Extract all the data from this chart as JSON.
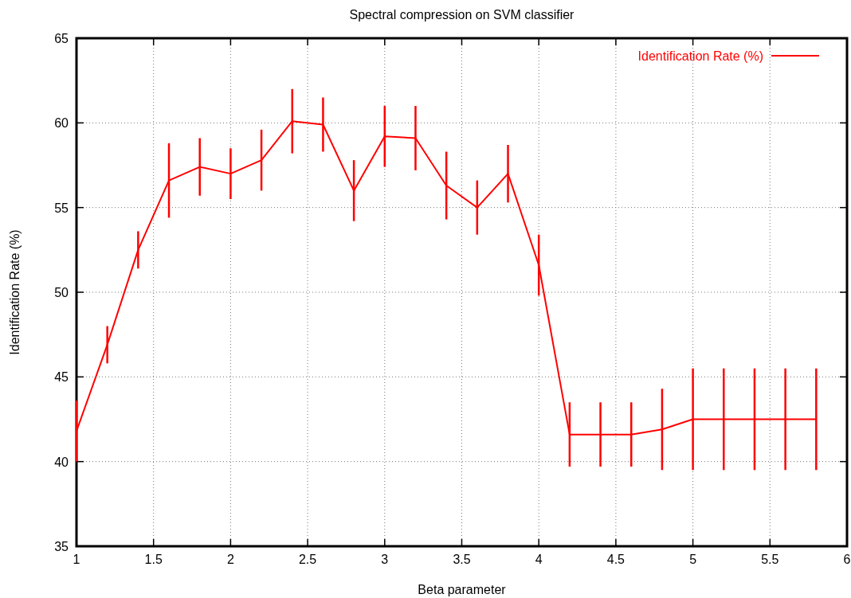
{
  "chart_data": {
    "type": "line",
    "title": "Spectral compression on SVM classifier",
    "xlabel": "Beta parameter",
    "ylabel": "Identification Rate (%)",
    "x": [
      1,
      1.2,
      1.4,
      1.6,
      1.8,
      2,
      2.2,
      2.4,
      2.6,
      2.8,
      3,
      3.2,
      3.4,
      3.6,
      3.8,
      4,
      4.2,
      4.4,
      4.6,
      4.8,
      5,
      5.2,
      5.4,
      5.6,
      5.8
    ],
    "series": [
      {
        "name": "Identification Rate (%)",
        "color": "#ff0000",
        "values": [
          41.8,
          46.9,
          52.5,
          56.6,
          57.4,
          57.0,
          57.8,
          60.1,
          59.9,
          56.0,
          59.2,
          59.1,
          56.3,
          55.0,
          57.0,
          51.6,
          41.6,
          41.6,
          41.6,
          41.9,
          42.5,
          42.5,
          42.5,
          42.5,
          42.5
        ],
        "errors": [
          1.8,
          1.1,
          1.1,
          2.2,
          1.7,
          1.5,
          1.8,
          1.9,
          1.6,
          1.8,
          1.8,
          1.9,
          2.0,
          1.6,
          1.7,
          1.8,
          1.9,
          1.9,
          1.9,
          2.4,
          3.0,
          3.0,
          3.0,
          3.0,
          3.0
        ]
      }
    ],
    "xlim": [
      1,
      6
    ],
    "xticks": [
      1,
      1.5,
      2,
      2.5,
      3,
      3.5,
      4,
      4.5,
      5,
      5.5,
      6
    ],
    "ylim": [
      35,
      65
    ],
    "yticks": [
      35,
      40,
      45,
      50,
      55,
      60,
      65
    ],
    "grid": true,
    "legend": "top right",
    "marker": "none",
    "line_style": "solid"
  }
}
